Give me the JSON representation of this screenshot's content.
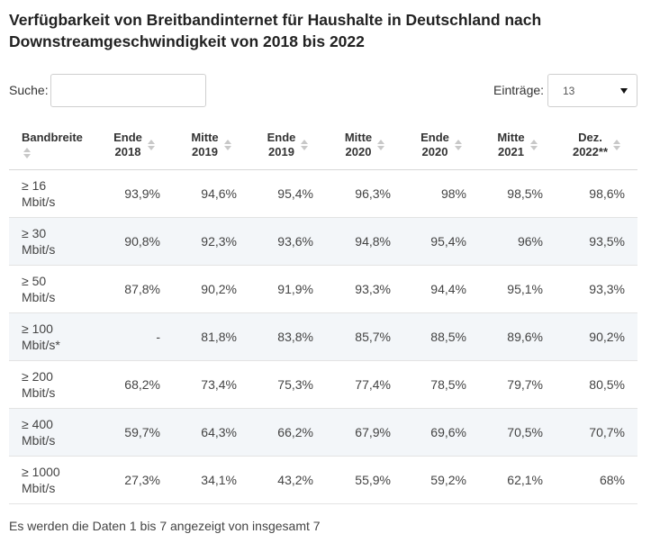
{
  "title": "Verfügbarkeit von Breitbandinternet für Haushalte in Deutschland nach Downstreamgeschwindigkeit von 2018 bis 2022",
  "search": {
    "label": "Suche:",
    "value": ""
  },
  "entries": {
    "label": "Einträge:",
    "selected": "13"
  },
  "table": {
    "columns": [
      [
        "Bandbreite"
      ],
      [
        "Ende",
        "2018"
      ],
      [
        "Mitte",
        "2019"
      ],
      [
        "Ende",
        "2019"
      ],
      [
        "Mitte",
        "2020"
      ],
      [
        "Ende",
        "2020"
      ],
      [
        "Mitte",
        "2021"
      ],
      [
        "Dez.",
        "2022**"
      ]
    ],
    "rows": [
      [
        [
          "≥ 16",
          "Mbit/s"
        ],
        "93,9%",
        "94,6%",
        "95,4%",
        "96,3%",
        "98%",
        "98,5%",
        "98,6%"
      ],
      [
        [
          "≥ 30",
          "Mbit/s"
        ],
        "90,8%",
        "92,3%",
        "93,6%",
        "94,8%",
        "95,4%",
        "96%",
        "93,5%"
      ],
      [
        [
          "≥ 50",
          "Mbit/s"
        ],
        "87,8%",
        "90,2%",
        "91,9%",
        "93,3%",
        "94,4%",
        "95,1%",
        "93,3%"
      ],
      [
        [
          "≥ 100",
          "Mbit/s*"
        ],
        "-",
        "81,8%",
        "83,8%",
        "85,7%",
        "88,5%",
        "89,6%",
        "90,2%"
      ],
      [
        [
          "≥ 200",
          "Mbit/s"
        ],
        "68,2%",
        "73,4%",
        "75,3%",
        "77,4%",
        "78,5%",
        "79,7%",
        "80,5%"
      ],
      [
        [
          "≥ 400",
          "Mbit/s"
        ],
        "59,7%",
        "64,3%",
        "66,2%",
        "67,9%",
        "69,6%",
        "70,5%",
        "70,7%"
      ],
      [
        [
          "≥ 1000",
          "Mbit/s"
        ],
        "27,3%",
        "34,1%",
        "43,2%",
        "55,9%",
        "59,2%",
        "62,1%",
        "68%"
      ]
    ]
  },
  "footer": "Es werden die Daten 1 bis 7 angezeigt von insgesamt 7"
}
